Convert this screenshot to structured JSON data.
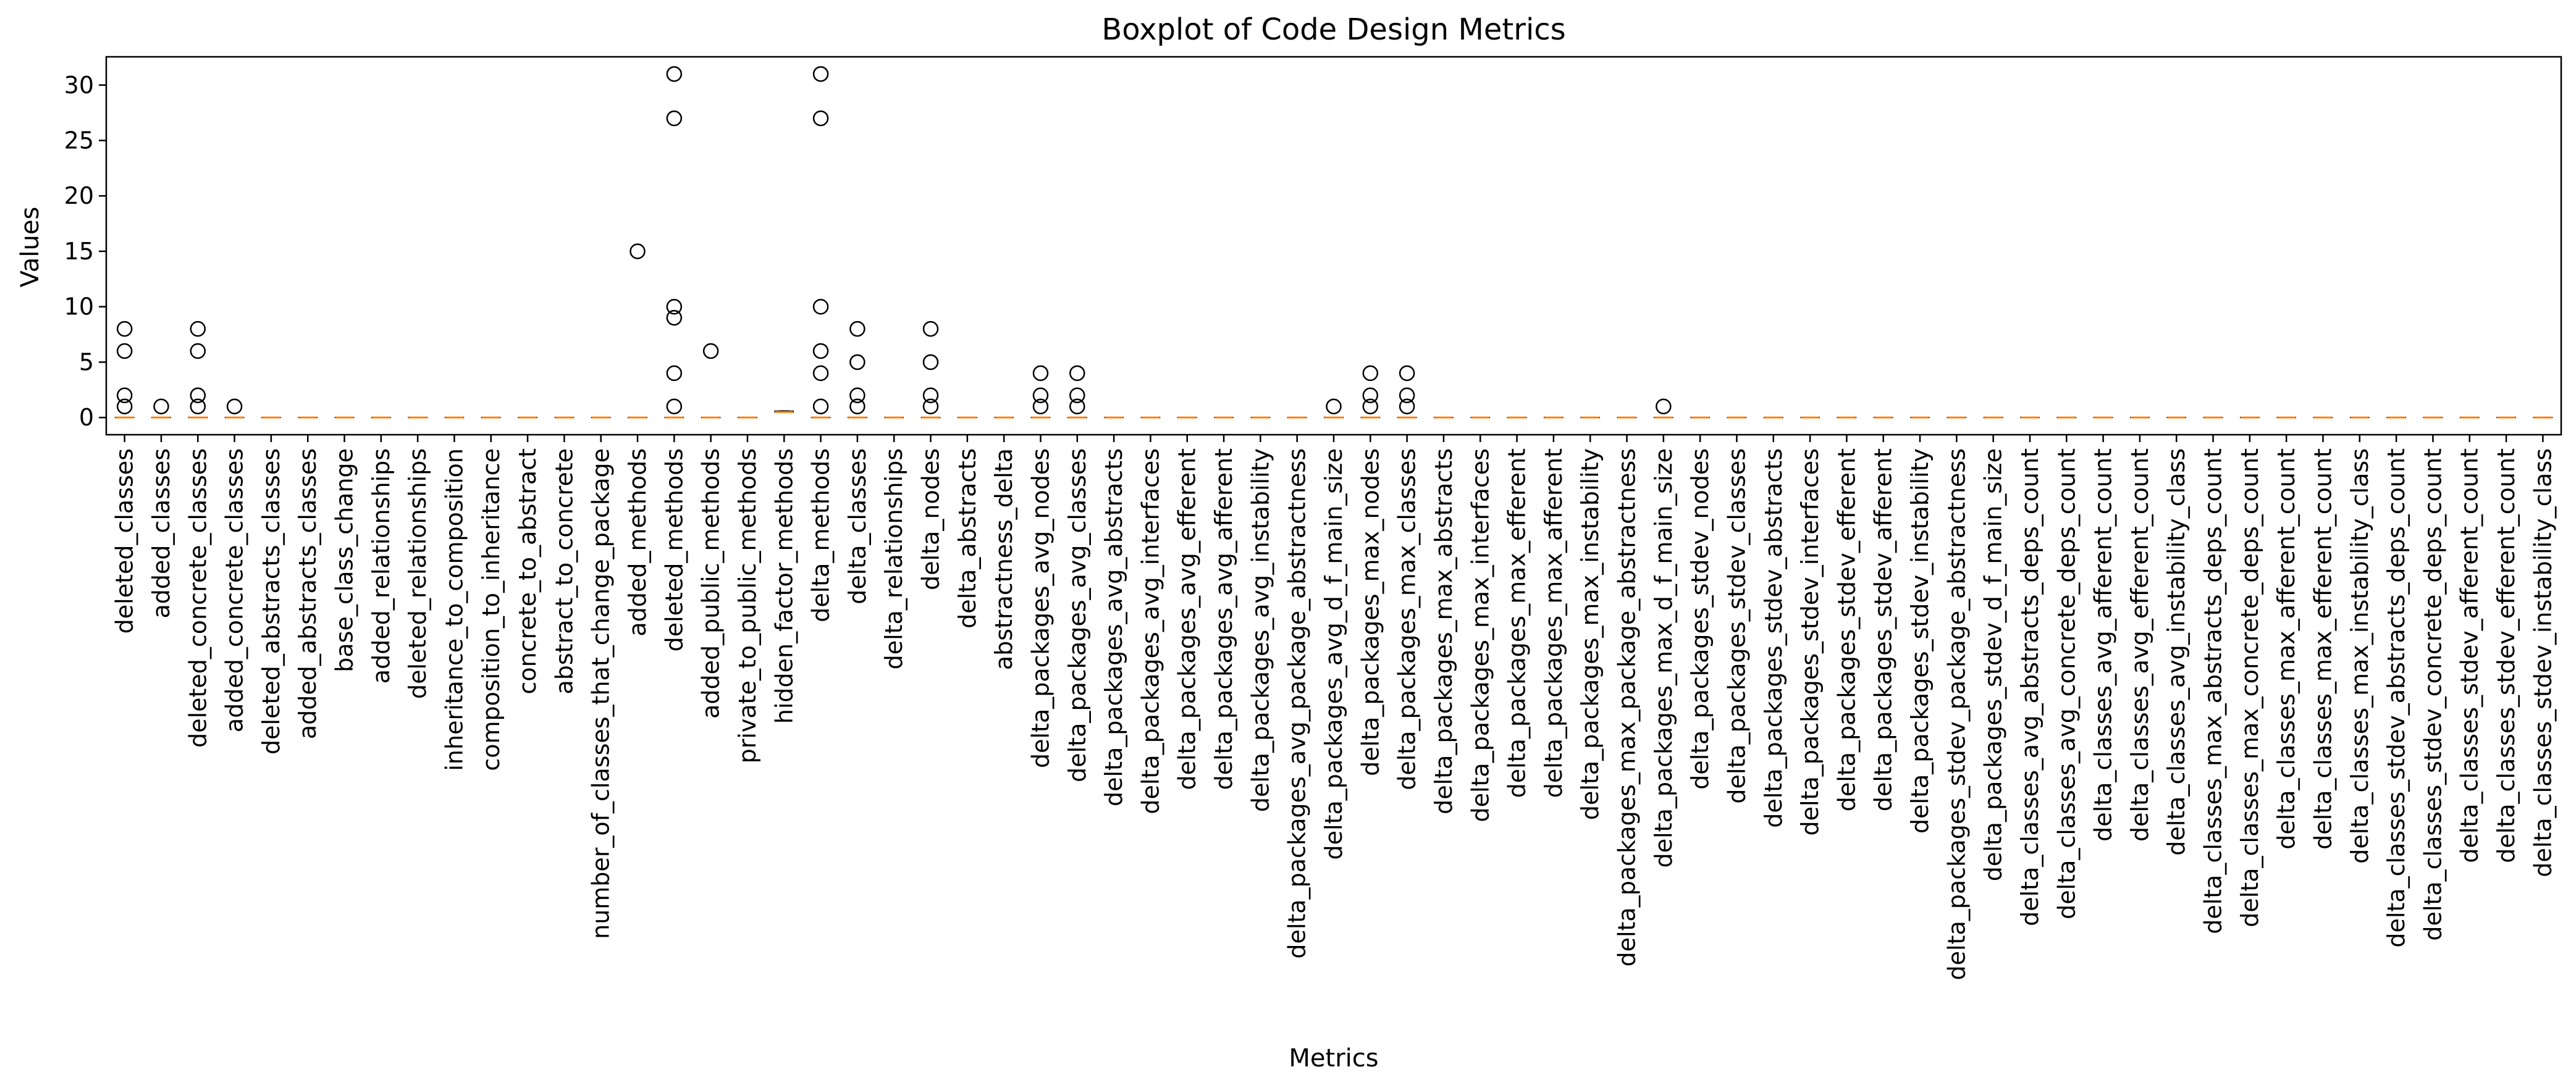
{
  "chart_data": {
    "type": "boxplot",
    "title": "Boxplot of Code Design Metrics",
    "xlabel": "Metrics",
    "ylabel": "Values",
    "ylim": [
      -1.55,
      32.55
    ],
    "yticks": [
      0,
      5,
      10,
      15,
      20,
      25,
      30
    ],
    "grid": false,
    "median_color": "#ff7f0e",
    "box_color": "#000000",
    "categories": [
      "deleted_classes",
      "added_classes",
      "deleted_concrete_classes",
      "added_concrete_classes",
      "deleted_abstracts_classes",
      "added_abstracts_classes",
      "base_class_change",
      "added_relationships",
      "deleted_relationships",
      "inheritance_to_composition",
      "composition_to_inheritance",
      "concrete_to_abstract",
      "abstract_to_concrete",
      "number_of_classes_that_change_package",
      "added_methods",
      "deleted_methods",
      "added_public_methods",
      "private_to_public_methods",
      "hidden_factor_methods",
      "delta_methods",
      "delta_classes",
      "delta_relationships",
      "delta_nodes",
      "delta_abstracts",
      "abstractness_delta",
      "delta_packages_avg_nodes",
      "delta_packages_avg_classes",
      "delta_packages_avg_abstracts",
      "delta_packages_avg_interfaces",
      "delta_packages_avg_efferent",
      "delta_packages_avg_afferent",
      "delta_packages_avg_instability",
      "delta_packages_avg_package_abstractness",
      "delta_packages_avg_d_f_main_size",
      "delta_packages_max_nodes",
      "delta_packages_max_classes",
      "delta_packages_max_abstracts",
      "delta_packages_max_interfaces",
      "delta_packages_max_efferent",
      "delta_packages_max_afferent",
      "delta_packages_max_instability",
      "delta_packages_max_package_abstractness",
      "delta_packages_max_d_f_main_size",
      "delta_packages_stdev_nodes",
      "delta_packages_stdev_classes",
      "delta_packages_stdev_abstracts",
      "delta_packages_stdev_interfaces",
      "delta_packages_stdev_efferent",
      "delta_packages_stdev_afferent",
      "delta_packages_stdev_instability",
      "delta_packages_stdev_package_abstractness",
      "delta_packages_stdev_d_f_main_size",
      "delta_classes_avg_abstracts_deps_count",
      "delta_classes_avg_concrete_deps_count",
      "delta_classes_avg_afferent_count",
      "delta_classes_avg_efferent_count",
      "delta_classes_avg_instability_class",
      "delta_classes_max_abstracts_deps_count",
      "delta_classes_max_concrete_deps_count",
      "delta_classes_max_afferent_count",
      "delta_classes_max_efferent_count",
      "delta_classes_max_instability_class",
      "delta_classes_stdev_abstracts_deps_count",
      "delta_classes_stdev_concrete_deps_count",
      "delta_classes_stdev_afferent_count",
      "delta_classes_stdev_efferent_count",
      "delta_classes_stdev_instability_class"
    ],
    "boxes": [
      {
        "min": 0,
        "q1": 0,
        "median": 0,
        "q3": 0,
        "max": 0,
        "outliers": [
          8,
          6,
          2,
          1
        ]
      },
      {
        "min": 0,
        "q1": 0,
        "median": 0,
        "q3": 0,
        "max": 0,
        "outliers": [
          1
        ]
      },
      {
        "min": 0,
        "q1": 0,
        "median": 0,
        "q3": 0,
        "max": 0,
        "outliers": [
          8,
          6,
          2,
          1
        ]
      },
      {
        "min": 0,
        "q1": 0,
        "median": 0,
        "q3": 0,
        "max": 0,
        "outliers": [
          1
        ]
      },
      {
        "min": 0,
        "q1": 0,
        "median": 0,
        "q3": 0,
        "max": 0,
        "outliers": []
      },
      {
        "min": 0,
        "q1": 0,
        "median": 0,
        "q3": 0,
        "max": 0,
        "outliers": []
      },
      {
        "min": 0,
        "q1": 0,
        "median": 0,
        "q3": 0,
        "max": 0,
        "outliers": []
      },
      {
        "min": 0,
        "q1": 0,
        "median": 0,
        "q3": 0,
        "max": 0,
        "outliers": []
      },
      {
        "min": 0,
        "q1": 0,
        "median": 0,
        "q3": 0,
        "max": 0,
        "outliers": []
      },
      {
        "min": 0,
        "q1": 0,
        "median": 0,
        "q3": 0,
        "max": 0,
        "outliers": []
      },
      {
        "min": 0,
        "q1": 0,
        "median": 0,
        "q3": 0,
        "max": 0,
        "outliers": []
      },
      {
        "min": 0,
        "q1": 0,
        "median": 0,
        "q3": 0,
        "max": 0,
        "outliers": []
      },
      {
        "min": 0,
        "q1": 0,
        "median": 0,
        "q3": 0,
        "max": 0,
        "outliers": []
      },
      {
        "min": 0,
        "q1": 0,
        "median": 0,
        "q3": 0,
        "max": 0,
        "outliers": []
      },
      {
        "min": 0,
        "q1": 0,
        "median": 0,
        "q3": 0,
        "max": 0,
        "outliers": [
          15
        ]
      },
      {
        "min": 0,
        "q1": 0,
        "median": 0,
        "q3": 0,
        "max": 0,
        "outliers": [
          31,
          27,
          10,
          9,
          4,
          1
        ]
      },
      {
        "min": 0,
        "q1": 0,
        "median": 0,
        "q3": 0,
        "max": 0,
        "outliers": [
          6
        ]
      },
      {
        "min": 0,
        "q1": 0,
        "median": 0,
        "q3": 0,
        "max": 0,
        "outliers": []
      },
      {
        "min": 0.5,
        "q1": 0.5,
        "median": 0.5,
        "q3": 0.58,
        "max": 0.6,
        "outliers": []
      },
      {
        "min": 0,
        "q1": 0,
        "median": 0,
        "q3": 0,
        "max": 0,
        "outliers": [
          31,
          27,
          10,
          6,
          4,
          1
        ]
      },
      {
        "min": 0,
        "q1": 0,
        "median": 0,
        "q3": 0,
        "max": 0,
        "outliers": [
          8,
          5,
          2,
          1
        ]
      },
      {
        "min": 0,
        "q1": 0,
        "median": 0,
        "q3": 0,
        "max": 0,
        "outliers": []
      },
      {
        "min": 0,
        "q1": 0,
        "median": 0,
        "q3": 0,
        "max": 0,
        "outliers": [
          8,
          5,
          2,
          1
        ]
      },
      {
        "min": 0,
        "q1": 0,
        "median": 0,
        "q3": 0,
        "max": 0,
        "outliers": []
      },
      {
        "min": 0,
        "q1": 0,
        "median": 0,
        "q3": 0,
        "max": 0,
        "outliers": []
      },
      {
        "min": 0,
        "q1": 0,
        "median": 0,
        "q3": 0,
        "max": 0,
        "outliers": [
          4,
          2,
          1
        ]
      },
      {
        "min": 0,
        "q1": 0,
        "median": 0,
        "q3": 0,
        "max": 0,
        "outliers": [
          4,
          2,
          1
        ]
      },
      {
        "min": 0,
        "q1": 0,
        "median": 0,
        "q3": 0,
        "max": 0,
        "outliers": []
      },
      {
        "min": 0,
        "q1": 0,
        "median": 0,
        "q3": 0,
        "max": 0,
        "outliers": []
      },
      {
        "min": 0,
        "q1": 0,
        "median": 0,
        "q3": 0,
        "max": 0,
        "outliers": []
      },
      {
        "min": 0,
        "q1": 0,
        "median": 0,
        "q3": 0,
        "max": 0,
        "outliers": []
      },
      {
        "min": 0,
        "q1": 0,
        "median": 0,
        "q3": 0,
        "max": 0,
        "outliers": []
      },
      {
        "min": 0,
        "q1": 0,
        "median": 0,
        "q3": 0,
        "max": 0,
        "outliers": []
      },
      {
        "min": 0,
        "q1": 0,
        "median": 0,
        "q3": 0,
        "max": 0,
        "outliers": [
          1
        ]
      },
      {
        "min": 0,
        "q1": 0,
        "median": 0,
        "q3": 0,
        "max": 0,
        "outliers": [
          4,
          2,
          1
        ]
      },
      {
        "min": 0,
        "q1": 0,
        "median": 0,
        "q3": 0,
        "max": 0,
        "outliers": [
          4,
          2,
          1
        ]
      },
      {
        "min": 0,
        "q1": 0,
        "median": 0,
        "q3": 0,
        "max": 0,
        "outliers": []
      },
      {
        "min": 0,
        "q1": 0,
        "median": 0,
        "q3": 0,
        "max": 0,
        "outliers": []
      },
      {
        "min": 0,
        "q1": 0,
        "median": 0,
        "q3": 0,
        "max": 0,
        "outliers": []
      },
      {
        "min": 0,
        "q1": 0,
        "median": 0,
        "q3": 0,
        "max": 0,
        "outliers": []
      },
      {
        "min": 0,
        "q1": 0,
        "median": 0,
        "q3": 0,
        "max": 0,
        "outliers": []
      },
      {
        "min": 0,
        "q1": 0,
        "median": 0,
        "q3": 0,
        "max": 0,
        "outliers": []
      },
      {
        "min": 0,
        "q1": 0,
        "median": 0,
        "q3": 0,
        "max": 0,
        "outliers": [
          1
        ]
      },
      {
        "min": 0,
        "q1": 0,
        "median": 0,
        "q3": 0,
        "max": 0,
        "outliers": []
      },
      {
        "min": 0,
        "q1": 0,
        "median": 0,
        "q3": 0,
        "max": 0,
        "outliers": []
      },
      {
        "min": 0,
        "q1": 0,
        "median": 0,
        "q3": 0,
        "max": 0,
        "outliers": []
      },
      {
        "min": 0,
        "q1": 0,
        "median": 0,
        "q3": 0,
        "max": 0,
        "outliers": []
      },
      {
        "min": 0,
        "q1": 0,
        "median": 0,
        "q3": 0,
        "max": 0,
        "outliers": []
      },
      {
        "min": 0,
        "q1": 0,
        "median": 0,
        "q3": 0,
        "max": 0,
        "outliers": []
      },
      {
        "min": 0,
        "q1": 0,
        "median": 0,
        "q3": 0,
        "max": 0,
        "outliers": []
      },
      {
        "min": 0,
        "q1": 0,
        "median": 0,
        "q3": 0,
        "max": 0,
        "outliers": []
      },
      {
        "min": 0,
        "q1": 0,
        "median": 0,
        "q3": 0,
        "max": 0,
        "outliers": []
      },
      {
        "min": 0,
        "q1": 0,
        "median": 0,
        "q3": 0,
        "max": 0,
        "outliers": []
      },
      {
        "min": 0,
        "q1": 0,
        "median": 0,
        "q3": 0,
        "max": 0,
        "outliers": []
      },
      {
        "min": 0,
        "q1": 0,
        "median": 0,
        "q3": 0,
        "max": 0,
        "outliers": []
      },
      {
        "min": 0,
        "q1": 0,
        "median": 0,
        "q3": 0,
        "max": 0,
        "outliers": []
      },
      {
        "min": 0,
        "q1": 0,
        "median": 0,
        "q3": 0,
        "max": 0,
        "outliers": []
      },
      {
        "min": 0,
        "q1": 0,
        "median": 0,
        "q3": 0,
        "max": 0,
        "outliers": []
      },
      {
        "min": 0,
        "q1": 0,
        "median": 0,
        "q3": 0,
        "max": 0,
        "outliers": []
      },
      {
        "min": 0,
        "q1": 0,
        "median": 0,
        "q3": 0,
        "max": 0,
        "outliers": []
      },
      {
        "min": 0,
        "q1": 0,
        "median": 0,
        "q3": 0,
        "max": 0,
        "outliers": []
      },
      {
        "min": 0,
        "q1": 0,
        "median": 0,
        "q3": 0,
        "max": 0,
        "outliers": []
      },
      {
        "min": 0,
        "q1": 0,
        "median": 0,
        "q3": 0,
        "max": 0,
        "outliers": []
      },
      {
        "min": 0,
        "q1": 0,
        "median": 0,
        "q3": 0,
        "max": 0,
        "outliers": []
      },
      {
        "min": 0,
        "q1": 0,
        "median": 0,
        "q3": 0,
        "max": 0,
        "outliers": []
      },
      {
        "min": 0,
        "q1": 0,
        "median": 0,
        "q3": 0,
        "max": 0,
        "outliers": []
      },
      {
        "min": 0,
        "q1": 0,
        "median": 0,
        "q3": 0,
        "max": 0,
        "outliers": []
      }
    ]
  }
}
